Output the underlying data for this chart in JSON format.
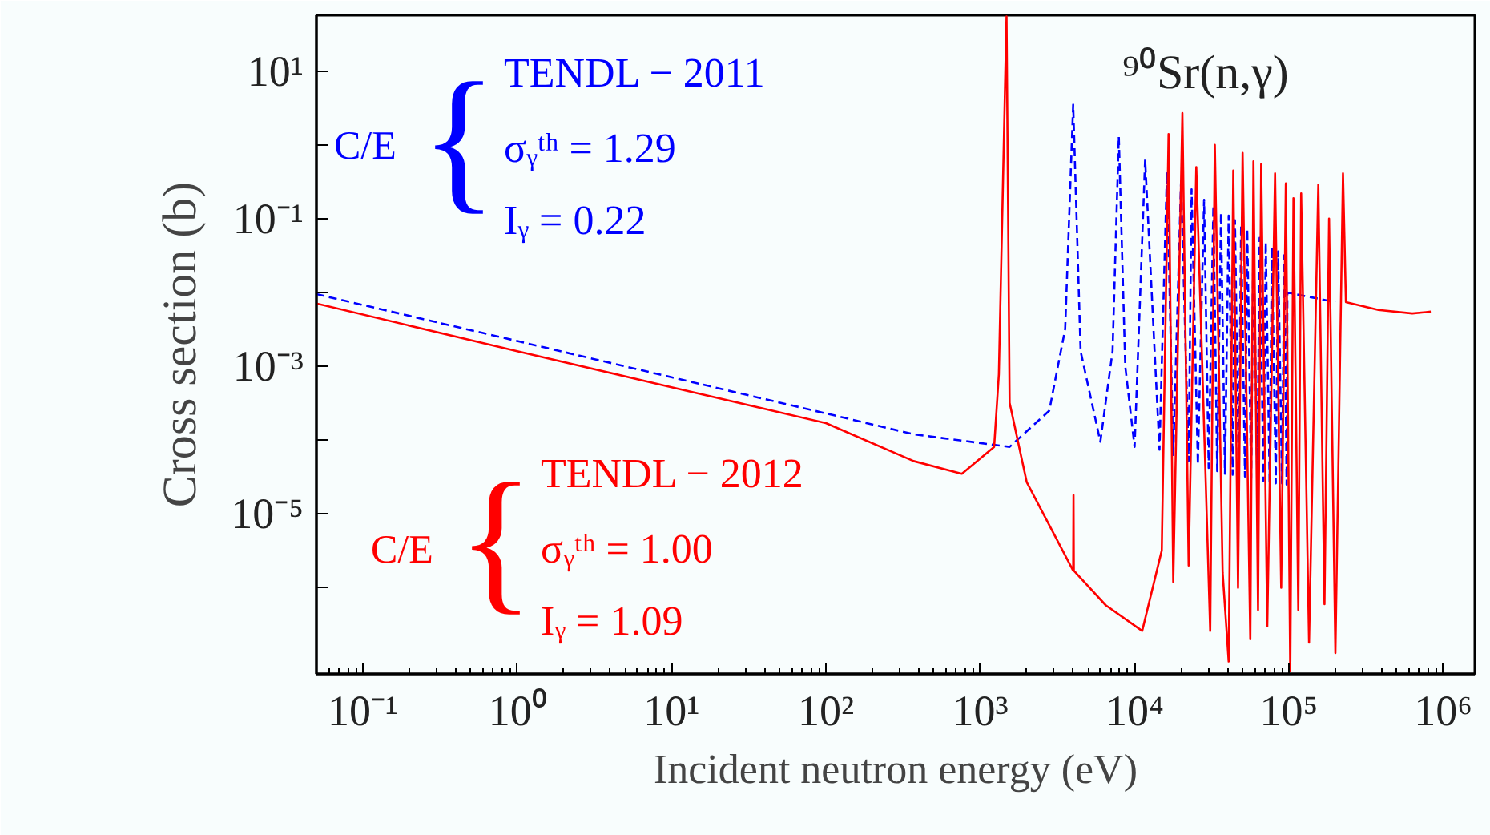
{
  "chart_data": {
    "type": "line",
    "xlabel": "Incident neutron energy (eV)",
    "ylabel": "Cross section (b)",
    "log": "xy",
    "grid": false,
    "legend": false,
    "marker": "none",
    "xlim": [
      0.05,
      1600000
    ],
    "ylim": [
      6.8e-08,
      57
    ],
    "xticks": [
      {
        "value": 0.1,
        "label": "10⁻¹"
      },
      {
        "value": 1,
        "label": "10⁰"
      },
      {
        "value": 10,
        "label": "10¹"
      },
      {
        "value": 100,
        "label": "10²"
      },
      {
        "value": 1000,
        "label": "10³"
      },
      {
        "value": 10000,
        "label": "10⁴"
      },
      {
        "value": 100000,
        "label": "10⁵"
      },
      {
        "value": 1000000,
        "label": "10⁶"
      }
    ],
    "yticks": [
      {
        "value": 10,
        "label": "10¹"
      },
      {
        "value": 1,
        "label": null
      },
      {
        "value": 0.1,
        "label": "10⁻¹"
      },
      {
        "value": 0.01,
        "label": null
      },
      {
        "value": 0.001,
        "label": "10⁻³"
      },
      {
        "value": 0.0001,
        "label": null
      },
      {
        "value": 1e-05,
        "label": "10⁻⁵"
      },
      {
        "value": 1e-06,
        "label": null
      }
    ],
    "series": [
      {
        "name": "TENDL − 2011",
        "color": "#0000ff",
        "line_style": "dashed",
        "x": [
          0.05,
          1,
          10,
          100,
          370,
          1550,
          2800,
          3550,
          4000,
          4470,
          6000,
          7200,
          7900,
          8700,
          10000,
          11700,
          14500,
          16200,
          17800,
          20000,
          22400,
          23400,
          25700,
          28200,
          30200,
          32400,
          34300,
          36300,
          38500,
          40700,
          43200,
          44700,
          47300,
          49000,
          51900,
          53700,
          56900,
          58900,
          62400,
          64600,
          68400,
          70800,
          75000,
          77600,
          82200,
          85100,
          90200,
          93300,
          96600,
          97700,
          200000
        ],
        "values": [
          0.0095,
          0.0022,
          0.00071,
          0.00023,
          0.00012,
          8.1e-05,
          0.00025,
          0.0032,
          3.5,
          0.0016,
          9.5e-05,
          0.0016,
          1.3,
          0.001,
          8.1e-05,
          0.63,
          7.4e-05,
          0.43,
          6.3e-05,
          0.32,
          5.2e-05,
          0.25,
          4.7e-05,
          0.18,
          4.2e-05,
          0.15,
          3.8e-05,
          0.12,
          3.5e-05,
          0.11,
          3.4e-05,
          0.095,
          3.3e-05,
          0.083,
          3.2e-05,
          0.072,
          3e-05,
          0.063,
          2.95e-05,
          0.055,
          2.8e-05,
          0.048,
          2.75e-05,
          0.042,
          2.6e-05,
          0.036,
          2.6e-05,
          0.032,
          2.5e-05,
          0.01,
          0.0074
        ]
      },
      {
        "name": "TENDL − 2012",
        "color": "#ff0000",
        "line_style": "solid",
        "x": [
          0.05,
          1,
          10,
          100,
          370,
          760,
          1230,
          1320,
          1480,
          1550,
          2000,
          4000,
          4020,
          4040,
          6500,
          11200,
          15000,
          16600,
          17800,
          20400,
          22400,
          25100,
          30900,
          33100,
          37200,
          40700,
          43600,
          46800,
          50100,
          56200,
          58900,
          63100,
          66100,
          72400,
          81300,
          89100,
          95500,
          102000,
          107000,
          115000,
          120000,
          135000,
          155000,
          170000,
          182000,
          200000,
          224000,
          234000,
          380000,
          630000,
          830000
        ],
        "values": [
          0.0071,
          0.0016,
          0.00052,
          0.00017,
          5.2e-05,
          3.5e-05,
          8.1e-05,
          0.00078,
          55,
          0.00032,
          2.7e-05,
          1.7e-06,
          1.8e-05,
          1.7e-06,
          5.8e-07,
          2.6e-07,
          3.2e-06,
          1.4,
          1.2e-06,
          2.7,
          2e-06,
          0.5,
          2.6e-07,
          1.0,
          1.6e-06,
          1e-07,
          0.45,
          1e-06,
          0.78,
          2e-07,
          0.6,
          5e-07,
          0.55,
          3e-07,
          0.41,
          1e-06,
          0.3,
          7.4e-08,
          0.19,
          5e-07,
          0.22,
          1.8e-07,
          0.29,
          6e-07,
          0.1,
          1.3e-07,
          0.41,
          0.0074,
          0.0058,
          0.0052,
          0.0055
        ]
      }
    ],
    "annotations": [
      "C/E",
      "{",
      "σᵧᵗʰ = 1.29",
      "Iᵧ = 0.22",
      "C/E",
      "{",
      "σᵧᵗʰ = 1.00",
      "Iᵧ = 1.09",
      "⁹⁰Sr(n,γ)"
    ]
  }
}
